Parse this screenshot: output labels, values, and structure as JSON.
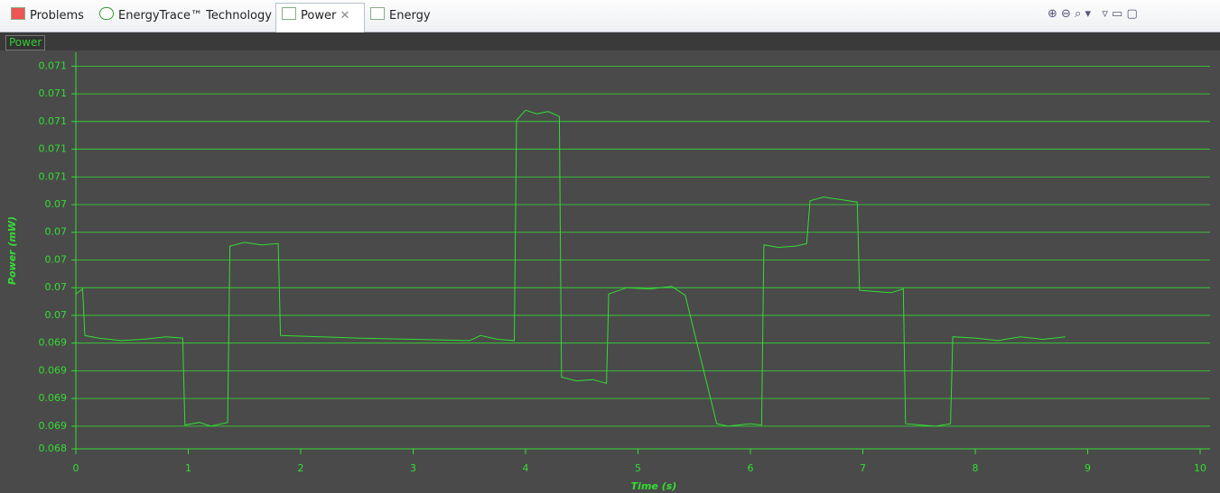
{
  "tabs": [
    "Problems",
    "EnergyTrace™ Technology",
    "Power",
    "Energy"
  ],
  "panel_label": "Power",
  "chart_data": {
    "type": "line",
    "x_label": "Time (s)",
    "y_label": "Power (mW)",
    "xlim": [
      0,
      10
    ],
    "xticks": [
      0,
      1,
      2,
      3,
      4,
      5,
      6,
      7,
      8,
      9,
      10
    ],
    "ylim": [
      0.06845,
      0.0716
    ],
    "yticks": [
      {
        "value": 0.06845,
        "label": "0.068"
      },
      {
        "value": 0.06863,
        "label": "0.069"
      },
      {
        "value": 0.06885,
        "label": "0.069"
      },
      {
        "value": 0.06907,
        "label": "0.069"
      },
      {
        "value": 0.06929,
        "label": "0.069"
      },
      {
        "value": 0.06951,
        "label": "0.07"
      },
      {
        "value": 0.06973,
        "label": "0.07"
      },
      {
        "value": 0.06995,
        "label": "0.07"
      },
      {
        "value": 0.07017,
        "label": "0.07"
      },
      {
        "value": 0.07039,
        "label": "0.07"
      },
      {
        "value": 0.07061,
        "label": "0.071"
      },
      {
        "value": 0.07083,
        "label": "0.071"
      },
      {
        "value": 0.07105,
        "label": "0.071"
      },
      {
        "value": 0.07127,
        "label": "0.071"
      },
      {
        "value": 0.07149,
        "label": "0.071"
      }
    ],
    "grid": true,
    "x": [
      0,
      0.06,
      0.08,
      0.2,
      0.4,
      0.6,
      0.8,
      0.95,
      0.97,
      1.1,
      1.2,
      1.35,
      1.37,
      1.5,
      1.65,
      1.8,
      1.82,
      2.5,
      3.0,
      3.5,
      3.6,
      3.75,
      3.9,
      3.92,
      4.0,
      4.1,
      4.2,
      4.3,
      4.32,
      4.45,
      4.6,
      4.72,
      4.74,
      4.9,
      5.1,
      5.3,
      5.42,
      5.7,
      5.8,
      6.0,
      6.1,
      6.12,
      6.25,
      6.4,
      6.5,
      6.53,
      6.65,
      6.8,
      6.95,
      6.97,
      7.1,
      7.25,
      7.36,
      7.38,
      7.5,
      7.65,
      7.78,
      7.8,
      8.0,
      8.2,
      8.4,
      8.6,
      8.8
    ],
    "series": [
      {
        "color": "#33dd33",
        "values": [
          0.06968,
          0.06972,
          0.06935,
          0.06933,
          0.06931,
          0.06932,
          0.06934,
          0.06933,
          0.06864,
          0.06866,
          0.06863,
          0.06866,
          0.07006,
          0.07009,
          0.07007,
          0.07008,
          0.06935,
          0.06933,
          0.06932,
          0.06931,
          0.06935,
          0.06932,
          0.06931,
          0.07106,
          0.07114,
          0.07111,
          0.07113,
          0.07109,
          0.06902,
          0.06899,
          0.069,
          0.06897,
          0.06968,
          0.06973,
          0.06972,
          0.06974,
          0.06967,
          0.06865,
          0.06863,
          0.06865,
          0.06864,
          0.07007,
          0.07005,
          0.07006,
          0.07008,
          0.07042,
          0.07045,
          0.07043,
          0.07041,
          0.06971,
          0.0697,
          0.06969,
          0.06972,
          0.06865,
          0.06864,
          0.06863,
          0.06865,
          0.06934,
          0.06933,
          0.06931,
          0.06934,
          0.06932,
          0.06934
        ]
      }
    ]
  }
}
